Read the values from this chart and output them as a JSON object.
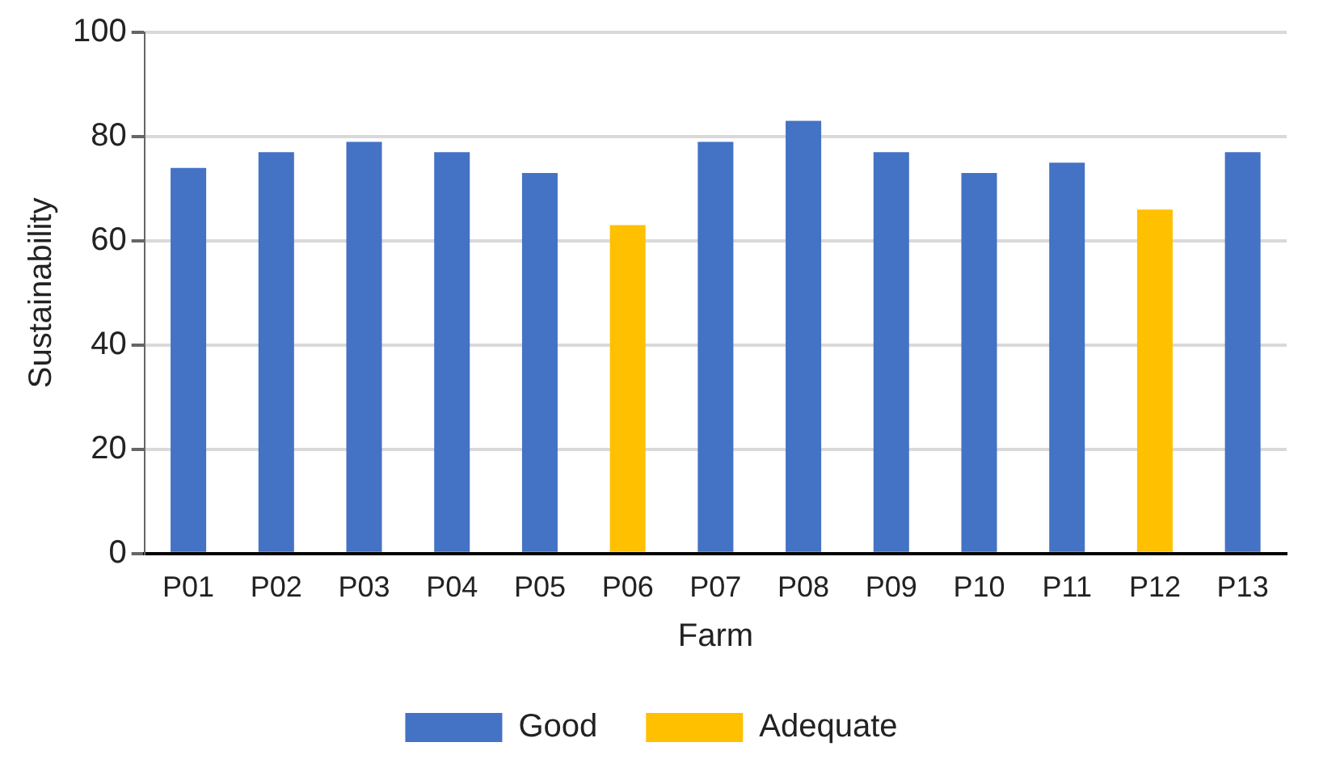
{
  "chart_data": {
    "type": "bar",
    "xlabel": "Farm",
    "ylabel": "Sustainability",
    "categories": [
      "P01",
      "P02",
      "P03",
      "P04",
      "P05",
      "P06",
      "P07",
      "P08",
      "P09",
      "P10",
      "P11",
      "P12",
      "P13"
    ],
    "series": [
      {
        "name": "Good",
        "color": "#4472c4",
        "values": [
          74,
          77,
          79,
          77,
          73,
          null,
          79,
          83,
          77,
          73,
          75,
          null,
          77
        ]
      },
      {
        "name": "Adequate",
        "color": "#ffc000",
        "values": [
          null,
          null,
          null,
          null,
          null,
          63,
          null,
          null,
          null,
          null,
          null,
          66,
          null
        ]
      }
    ],
    "ylim": [
      0,
      100
    ],
    "yticks": [
      0,
      20,
      40,
      60,
      80,
      100
    ],
    "grid": "y",
    "legend": "bottom"
  }
}
